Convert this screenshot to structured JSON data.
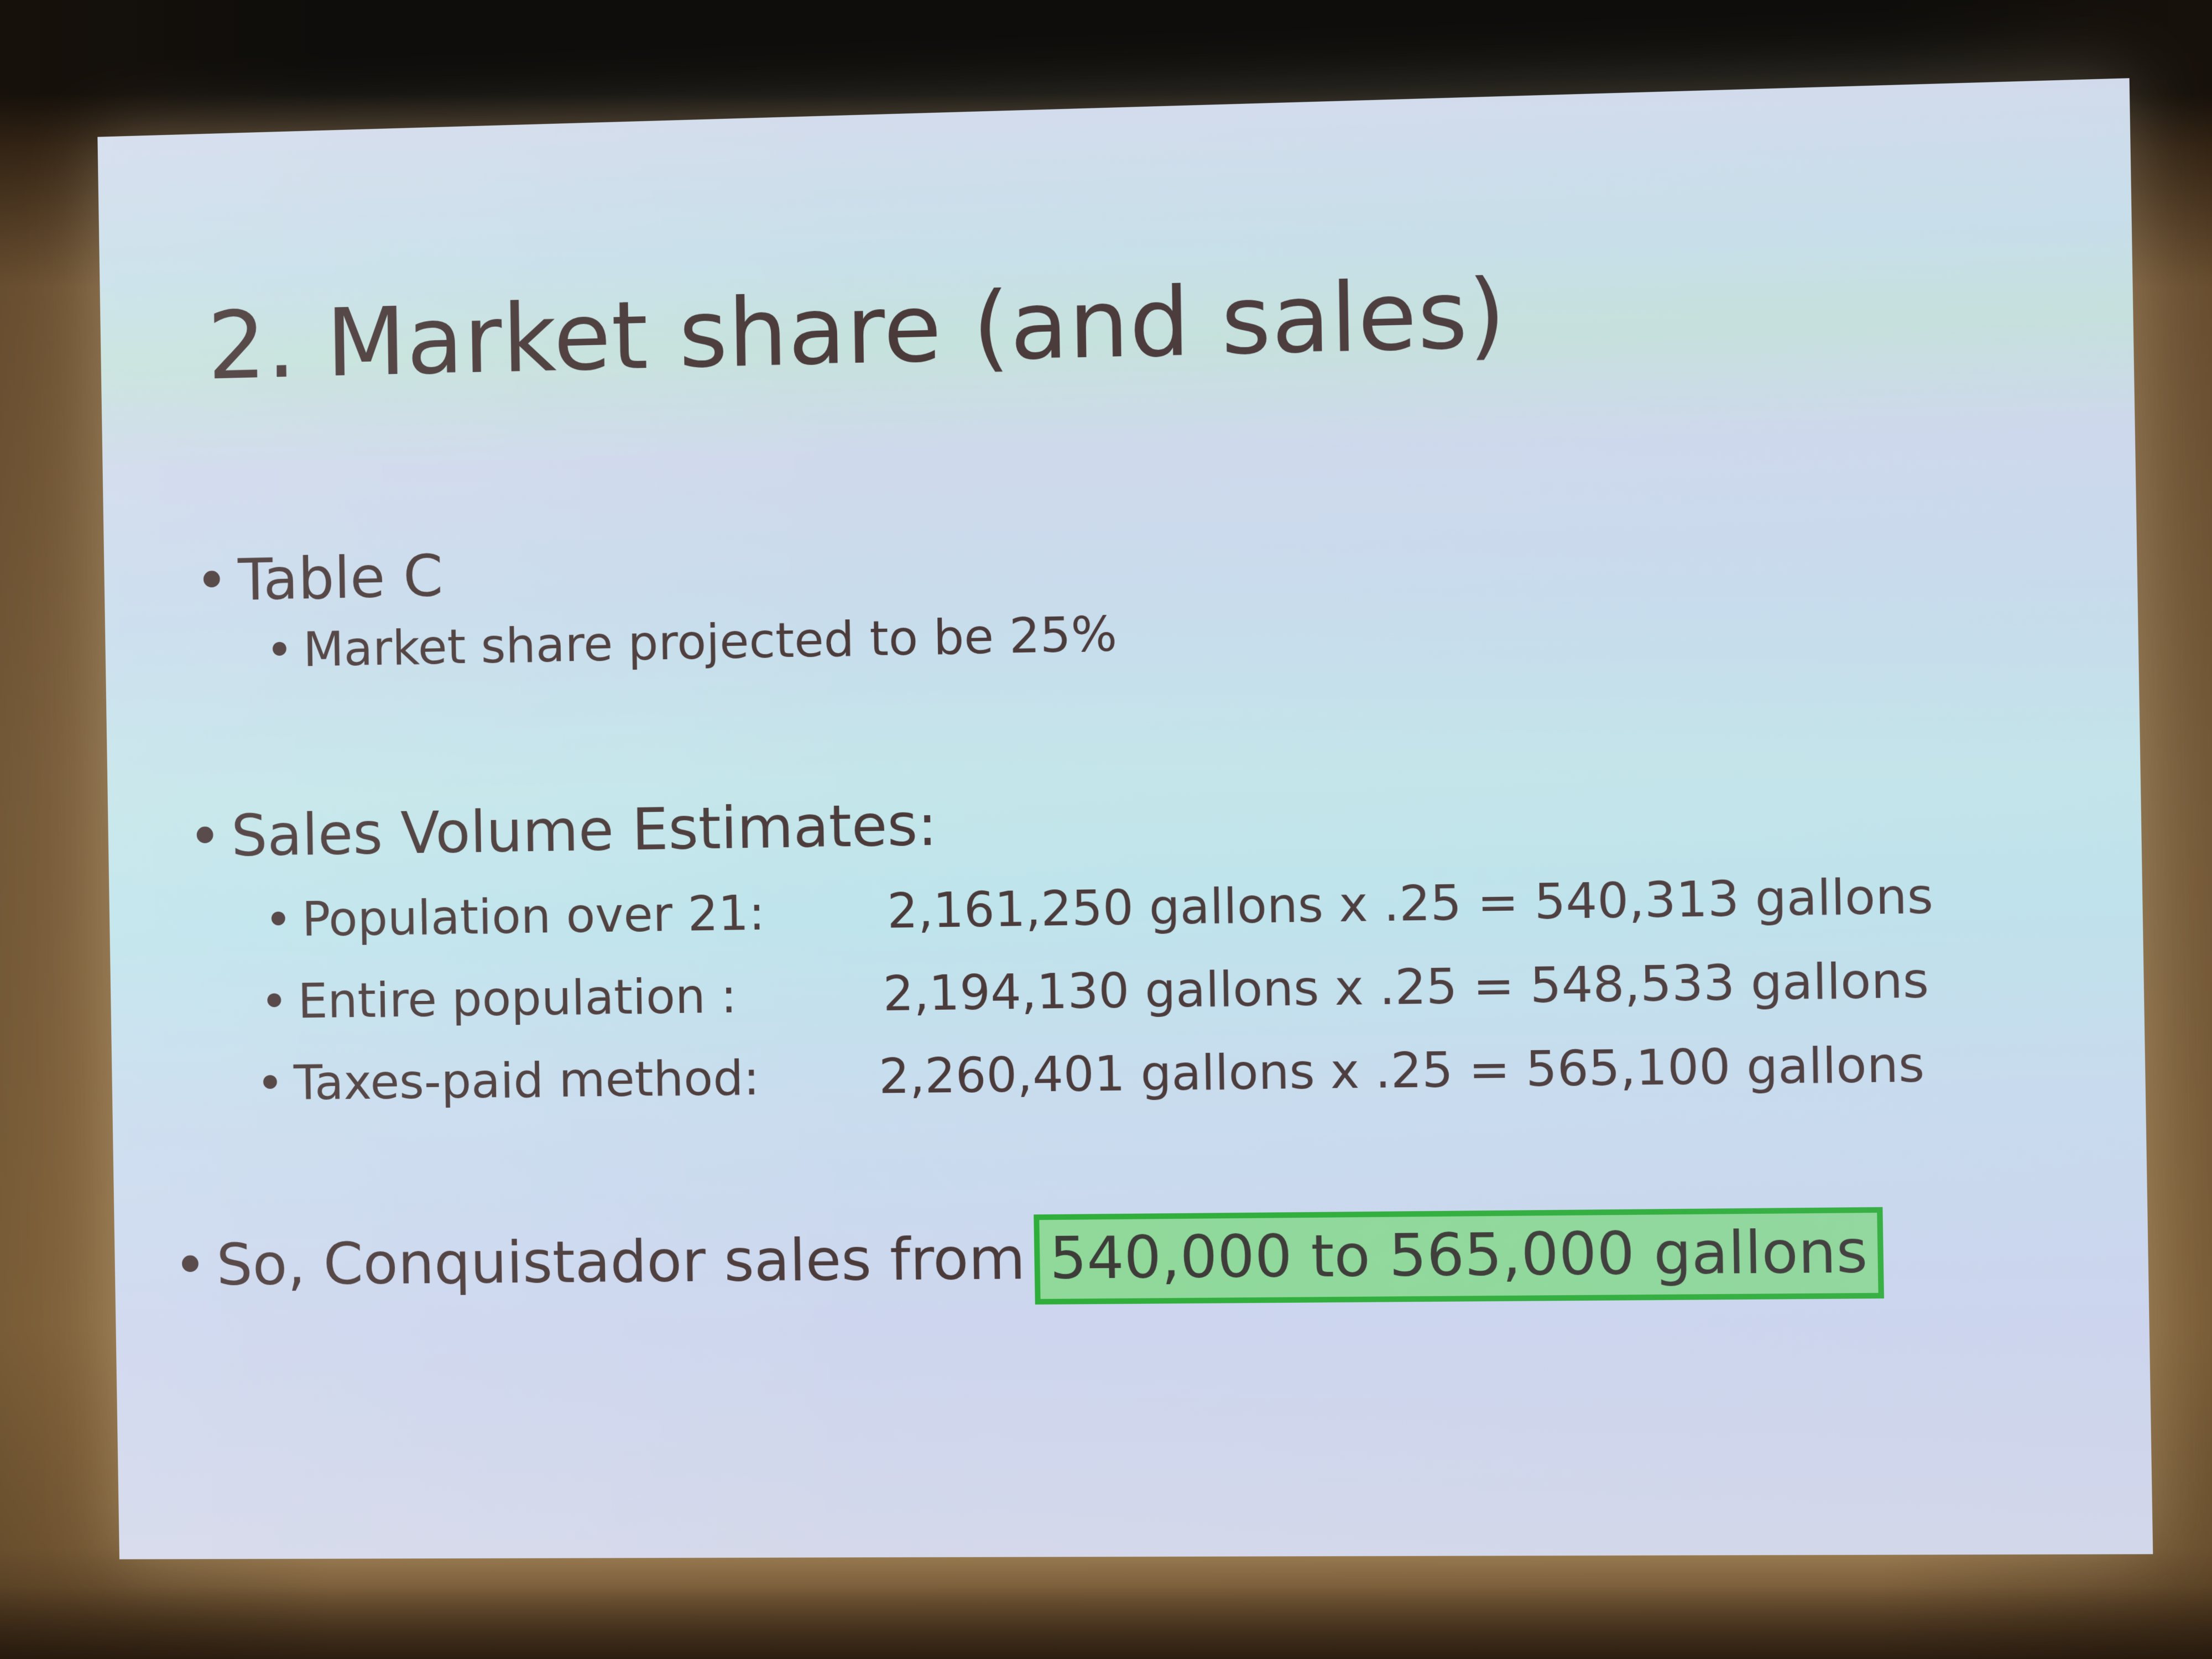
{
  "slide": {
    "title": "2. Market share (and sales)",
    "bullets": {
      "table": {
        "label": "Table C",
        "sub": "Market share projected to be 25%"
      },
      "sales": {
        "label": "Sales Volume Estimates:",
        "rows": [
          {
            "label": "Population over 21:",
            "calc": "2,161,250 gallons x .25 = 540,313 gallons"
          },
          {
            "label": "Entire population :",
            "calc": "2,194,130 gallons x .25 = 548,533 gallons"
          },
          {
            "label": "Taxes-paid method:",
            "calc": "2,260,401 gallons x .25 = 565,100 gallons"
          }
        ]
      },
      "conclusion": {
        "prefix": "So, Conquistador sales from",
        "highlight": "540,000 to 565,000 gallons"
      }
    },
    "colors": {
      "text": "#4a3a3a",
      "highlight_fill": "#8fd99a",
      "highlight_border": "#2fae3a"
    }
  }
}
